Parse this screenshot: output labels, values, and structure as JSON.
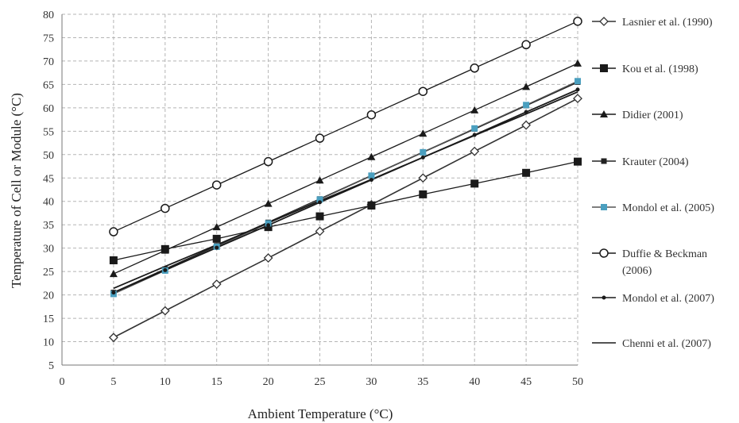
{
  "chart_data": {
    "type": "line",
    "xlabel": "Ambient Temperature (°C)",
    "ylabel": "Temperature of Cell or Module (°C)",
    "xlim": [
      0,
      50
    ],
    "ylim": [
      5,
      80
    ],
    "x_ticks": [
      0,
      5,
      10,
      15,
      20,
      25,
      30,
      35,
      40,
      45,
      50
    ],
    "y_ticks": [
      5,
      10,
      15,
      20,
      25,
      30,
      35,
      40,
      45,
      50,
      55,
      60,
      65,
      70,
      75,
      80
    ],
    "grid": true,
    "legend_position": "right",
    "x": [
      5,
      10,
      15,
      20,
      25,
      30,
      35,
      40,
      45,
      50
    ],
    "series": [
      {
        "name": "Lasnier et al. (1990)",
        "marker": "diamond",
        "color": "#333333",
        "values": [
          10.9,
          16.6,
          22.3,
          27.9,
          33.6,
          39.3,
          45.0,
          50.7,
          56.3,
          62.0
        ]
      },
      {
        "name": "Kou et al. (1998)",
        "marker": "square",
        "color": "#1a1a1a",
        "values": [
          27.4,
          29.8,
          32.0,
          34.5,
          36.8,
          39.1,
          41.5,
          43.8,
          46.1,
          48.5
        ]
      },
      {
        "name": "Didier (2001)",
        "marker": "triangle",
        "color": "#1a1a1a",
        "values": [
          24.5,
          29.5,
          34.5,
          39.5,
          44.5,
          49.5,
          54.5,
          59.5,
          64.5,
          69.5
        ]
      },
      {
        "name": "Krauter (2004)",
        "marker": "small-square",
        "color": "#222222",
        "values": [
          20.5,
          25.5,
          30.5,
          35.5,
          40.5,
          45.5,
          50.5,
          55.5,
          60.5,
          65.5
        ]
      },
      {
        "name": "Mondol et al. (2005)",
        "marker": "square-blue",
        "color": "#4a9fbf",
        "values": [
          20.2,
          25.2,
          30.3,
          35.3,
          40.4,
          45.5,
          50.5,
          55.6,
          60.6,
          65.7
        ]
      },
      {
        "name": "Duffie & Beckman (2006)",
        "marker": "circle-open",
        "color": "#1a1a1a",
        "values": [
          33.5,
          38.5,
          43.5,
          48.5,
          53.5,
          58.5,
          63.5,
          68.5,
          73.5,
          78.5
        ]
      },
      {
        "name": "Mondol et al. (2007)",
        "marker": "dot",
        "color": "#1a1a1a",
        "values": [
          20.5,
          25.3,
          30.1,
          34.9,
          39.8,
          44.6,
          49.4,
          54.2,
          59.1,
          63.9
        ]
      },
      {
        "name": "Chenni et al. (2007)",
        "marker": "none",
        "color": "#1a1a1a",
        "values": [
          21.4,
          26.1,
          30.7,
          35.4,
          40.1,
          44.7,
          49.4,
          54.1,
          58.7,
          63.4
        ]
      }
    ]
  }
}
